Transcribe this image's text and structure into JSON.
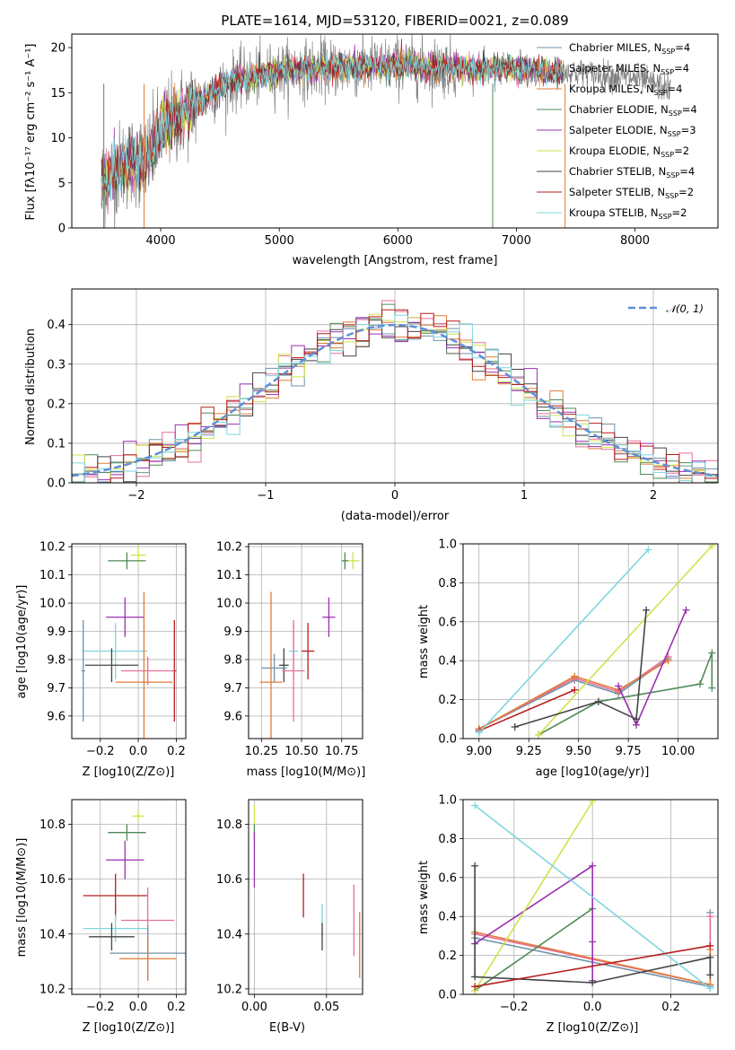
{
  "colors": {
    "Chabrier MILES": "#6f93a5",
    "Salpeter MILES": "#e76f9a",
    "Kroupa MILES": "#e07b39",
    "Chabrier ELODIE": "#4f8a57",
    "Salpeter ELODIE": "#9b2fb0",
    "Kroupa ELODIE": "#cfe34a",
    "Chabrier STELIB": "#444444",
    "Salpeter STELIB": "#b71c1c",
    "Kroupa STELIB": "#7ed6df",
    "Gaussian": "#5f8fd6",
    "Spectrum": "#808080"
  },
  "chart_data": [
    {
      "id": "spectrum",
      "type": "line",
      "title": "PLATE=1614, MJD=53120, FIBERID=0021, z=0.089",
      "xlabel": "wavelength [Angstrom, rest frame]",
      "ylabel": "Flux [fλ10⁻¹⁷ erg cm⁻² s⁻¹ A⁻¹]",
      "xlim": [
        3250,
        8700
      ],
      "ylim": [
        0,
        21.5
      ],
      "xticks": [
        4000,
        5000,
        6000,
        7000,
        8000
      ],
      "yticks": [
        0,
        5,
        10,
        15,
        20
      ],
      "legend_position": "right",
      "legend": [
        "Chabrier MILES, N_SSP=4",
        "Salpeter MILES, N_SSP=4",
        "Kroupa MILES, N_SSP=4",
        "Chabrier ELODIE, N_SSP=4",
        "Salpeter ELODIE, N_SSP=3",
        "Kroupa ELODIE, N_SSP=2",
        "Chabrier STELIB, N_SSP=4",
        "Salpeter STELIB, N_SSP=2",
        "Kroupa STELIB, N_SSP=2"
      ],
      "continuum_anchors": [
        [
          3500,
          5.0
        ],
        [
          3700,
          7.2
        ],
        [
          3900,
          7.8
        ],
        [
          4000,
          11.0
        ],
        [
          4300,
          13.8
        ],
        [
          4600,
          16.2
        ],
        [
          5000,
          17.4
        ],
        [
          5500,
          17.8
        ],
        [
          6000,
          18.0
        ],
        [
          6500,
          17.8
        ],
        [
          7000,
          17.6
        ],
        [
          7500,
          17.2
        ],
        [
          8000,
          16.6
        ],
        [
          8300,
          15.4
        ]
      ],
      "spectrum_range": [
        3500,
        8300
      ],
      "model_range": [
        3500,
        7400
      ],
      "spikes": [
        [
          3520,
          0
        ],
        [
          3860,
          0
        ],
        [
          6800,
          0
        ],
        [
          7410,
          0
        ]
      ]
    },
    {
      "id": "residuals",
      "type": "histogram",
      "xlabel": "(data-model)/error",
      "ylabel": "Normed distribution",
      "xlim": [
        -2.5,
        2.5
      ],
      "ylim": [
        0,
        0.49
      ],
      "xticks": [
        -2,
        -1,
        0,
        1,
        2
      ],
      "yticks": [
        0.0,
        0.1,
        0.2,
        0.3,
        0.4
      ],
      "grid": true,
      "legend_position": "top-right",
      "legend": [
        "𝒩(0, 1)"
      ],
      "bin_width": 0.1,
      "gaussian": {
        "mean": 0,
        "sigma": 1
      }
    },
    {
      "id": "age-vs-Z",
      "type": "errorbar",
      "xlabel": "Z [log10(Z/Z⊙)]",
      "ylabel": "age  [log10(age/yr)]",
      "xlim": [
        -0.35,
        0.25
      ],
      "ylim": [
        9.52,
        10.21
      ],
      "xticks": [
        -0.2,
        0.0,
        0.2
      ],
      "yticks": [
        9.6,
        9.7,
        9.8,
        9.9,
        10.0,
        10.1,
        10.2
      ],
      "points": [
        {
          "model": "Kroupa ELODIE",
          "x": 0.0,
          "xerr": 0.04,
          "y": 10.17,
          "yerr": 0.03
        },
        {
          "model": "Chabrier ELODIE",
          "x": -0.06,
          "xerr": 0.1,
          "y": 10.15,
          "yerr": 0.03
        },
        {
          "model": "Salpeter ELODIE",
          "x": -0.07,
          "xerr": 0.1,
          "y": 9.95,
          "yerr": 0.07
        },
        {
          "model": "Kroupa STELIB",
          "x": -0.12,
          "xerr": 0.17,
          "y": 9.83,
          "yerr": 0.1
        },
        {
          "model": "Chabrier MILES",
          "x": -0.29,
          "xerr": 0.01,
          "y": 9.76,
          "yerr": 0.18
        },
        {
          "model": "Salpeter STELIB",
          "x": 0.19,
          "xerr": 0.01,
          "y": 9.76,
          "yerr": 0.18
        },
        {
          "model": "Chabrier STELIB",
          "x": -0.14,
          "xerr": 0.14,
          "y": 9.78,
          "yerr": 0.06
        },
        {
          "model": "Salpeter MILES",
          "x": 0.05,
          "xerr": 0.14,
          "y": 9.76,
          "yerr": 0.05
        },
        {
          "model": "Kroupa MILES",
          "x": 0.03,
          "xerr": 0.15,
          "y": 9.72,
          "yerr": 0.32
        }
      ]
    },
    {
      "id": "age-vs-mass",
      "type": "errorbar",
      "xlabel": "mass [log10(M/M⊙)]",
      "ylabel": "",
      "xlim": [
        10.17,
        10.88
      ],
      "ylim": [
        9.52,
        10.21
      ],
      "xticks": [
        10.25,
        10.5,
        10.75
      ],
      "yticks": [
        9.6,
        9.7,
        9.8,
        9.9,
        10.0,
        10.1,
        10.2
      ],
      "points": [
        {
          "model": "Kroupa ELODIE",
          "x": 10.82,
          "xerr": 0.04,
          "y": 10.15,
          "yerr": 0.03
        },
        {
          "model": "Chabrier ELODIE",
          "x": 10.77,
          "xerr": 0.02,
          "y": 10.15,
          "yerr": 0.03
        },
        {
          "model": "Salpeter ELODIE",
          "x": 10.67,
          "xerr": 0.04,
          "y": 9.95,
          "yerr": 0.07
        },
        {
          "model": "Salpeter STELIB",
          "x": 10.54,
          "xerr": 0.04,
          "y": 9.83,
          "yerr": 0.1
        },
        {
          "model": "Kroupa STELIB",
          "x": 10.45,
          "xerr": 0.03,
          "y": 9.83,
          "yerr": 0.1
        },
        {
          "model": "Chabrier STELIB",
          "x": 10.39,
          "xerr": 0.03,
          "y": 9.78,
          "yerr": 0.06
        },
        {
          "model": "Chabrier MILES",
          "x": 10.33,
          "xerr": 0.08,
          "y": 9.77,
          "yerr": 0.05
        },
        {
          "model": "Salpeter MILES",
          "x": 10.45,
          "xerr": 0.07,
          "y": 9.76,
          "yerr": 0.18
        },
        {
          "model": "Kroupa MILES",
          "x": 10.31,
          "xerr": 0.07,
          "y": 9.72,
          "yerr": 0.32
        }
      ]
    },
    {
      "id": "mass-weight-vs-age",
      "type": "line",
      "xlabel": "age  [log10(age/yr)]",
      "ylabel": "mass weight",
      "xlim": [
        8.92,
        10.2
      ],
      "ylim": [
        0,
        1.0
      ],
      "xticks": [
        9.0,
        9.25,
        9.5,
        9.75,
        10.0
      ],
      "yticks": [
        0.0,
        0.2,
        0.4,
        0.6,
        0.8,
        1.0
      ],
      "series": [
        {
          "model": "Chabrier MILES",
          "x": [
            9.0,
            9.48,
            9.7,
            9.95
          ],
          "y": [
            0.05,
            0.3,
            0.23,
            0.41
          ]
        },
        {
          "model": "Salpeter MILES",
          "x": [
            9.0,
            9.48,
            9.7,
            9.95
          ],
          "y": [
            0.05,
            0.31,
            0.24,
            0.42
          ]
        },
        {
          "model": "Kroupa MILES",
          "x": [
            9.0,
            9.48,
            9.7,
            9.95
          ],
          "y": [
            0.05,
            0.32,
            0.25,
            0.4
          ]
        },
        {
          "model": "Chabrier ELODIE",
          "x": [
            9.3,
            9.6,
            10.11,
            10.17,
            10.17
          ],
          "y": [
            0.02,
            0.19,
            0.28,
            0.44,
            0.26
          ]
        },
        {
          "model": "Salpeter ELODIE",
          "x": [
            9.7,
            9.79,
            10.04
          ],
          "y": [
            0.27,
            0.07,
            0.66
          ]
        },
        {
          "model": "Kroupa ELODIE",
          "x": [
            9.3,
            10.17
          ],
          "y": [
            0.02,
            0.99
          ]
        },
        {
          "model": "Chabrier STELIB",
          "x": [
            9.18,
            9.6,
            9.79,
            9.84
          ],
          "y": [
            0.06,
            0.19,
            0.1,
            0.66
          ]
        },
        {
          "model": "Salpeter STELIB",
          "x": [
            9.0,
            9.48
          ],
          "y": [
            0.04,
            0.25
          ]
        },
        {
          "model": "Kroupa STELIB",
          "x": [
            9.0,
            9.85
          ],
          "y": [
            0.03,
            0.97
          ]
        }
      ]
    },
    {
      "id": "mass-vs-Z",
      "type": "errorbar",
      "xlabel": "Z [log10(Z/Z⊙)]",
      "ylabel": "mass [log10(M/M⊙)]",
      "xlim": [
        -0.35,
        0.25
      ],
      "ylim": [
        10.18,
        10.89
      ],
      "xticks": [
        -0.2,
        0.0,
        0.2
      ],
      "yticks": [
        10.2,
        10.4,
        10.6,
        10.8
      ],
      "points": [
        {
          "model": "Kroupa ELODIE",
          "x": 0.0,
          "xerr": 0.03,
          "y": 10.83,
          "yerr": 0.02
        },
        {
          "model": "Chabrier ELODIE",
          "x": -0.06,
          "xerr": 0.1,
          "y": 10.77,
          "yerr": 0.03
        },
        {
          "model": "Salpeter ELODIE",
          "x": -0.07,
          "xerr": 0.1,
          "y": 10.67,
          "yerr": 0.07
        },
        {
          "model": "Salpeter STELIB",
          "x": -0.12,
          "xerr": 0.17,
          "y": 10.54,
          "yerr": 0.08
        },
        {
          "model": "Salpeter MILES",
          "x": 0.05,
          "xerr": 0.14,
          "y": 10.45,
          "yerr": 0.12
        },
        {
          "model": "Kroupa STELIB",
          "x": -0.12,
          "xerr": 0.17,
          "y": 10.42,
          "yerr": 0.05
        },
        {
          "model": "Chabrier STELIB",
          "x": -0.14,
          "xerr": 0.12,
          "y": 10.39,
          "yerr": 0.05
        },
        {
          "model": "Chabrier MILES",
          "x": 0.05,
          "xerr": 0.2,
          "y": 10.33,
          "yerr": 0.1
        },
        {
          "model": "Kroupa MILES",
          "x": 0.05,
          "xerr": 0.15,
          "y": 10.31,
          "yerr": 0.08
        }
      ]
    },
    {
      "id": "mass-vs-EBV",
      "type": "errorbar",
      "xlabel": "E(B-V)",
      "ylabel": "",
      "xlim": [
        -0.004,
        0.075
      ],
      "ylim": [
        10.18,
        10.89
      ],
      "xticks": [
        0.0,
        0.05
      ],
      "yticks": [
        10.2,
        10.4,
        10.6,
        10.8
      ],
      "points": [
        {
          "model": "Kroupa ELODIE",
          "x": 0.0,
          "xerr": 0.0,
          "y": 10.83,
          "yerr": 0.04
        },
        {
          "model": "Chabrier ELODIE",
          "x": 0.0,
          "xerr": 0.0,
          "y": 10.77,
          "yerr": 0.03
        },
        {
          "model": "Salpeter ELODIE",
          "x": 0.0,
          "xerr": 0.0,
          "y": 10.67,
          "yerr": 0.1
        },
        {
          "model": "Salpeter STELIB",
          "x": 0.034,
          "xerr": 0.0,
          "y": 10.54,
          "yerr": 0.08
        },
        {
          "model": "Kroupa STELIB",
          "x": 0.047,
          "xerr": 0.0,
          "y": 10.45,
          "yerr": 0.06
        },
        {
          "model": "Chabrier STELIB",
          "x": 0.047,
          "xerr": 0.0,
          "y": 10.39,
          "yerr": 0.05
        },
        {
          "model": "Salpeter MILES",
          "x": 0.069,
          "xerr": 0.0,
          "y": 10.45,
          "yerr": 0.13
        },
        {
          "model": "Kroupa MILES",
          "x": 0.073,
          "xerr": 0.0,
          "y": 10.36,
          "yerr": 0.12
        }
      ]
    },
    {
      "id": "mass-weight-vs-Z",
      "type": "line",
      "xlabel": "Z [log10(Z/Z⊙)]",
      "ylabel": "mass weight",
      "xlim": [
        -0.33,
        0.32
      ],
      "ylim": [
        0,
        1.0
      ],
      "xticks": [
        -0.2,
        0.0,
        0.2
      ],
      "yticks": [
        0.0,
        0.2,
        0.4,
        0.6,
        0.8,
        1.0
      ],
      "series": [
        {
          "model": "Chabrier MILES",
          "x": [
            -0.3,
            0.3,
            0.3
          ],
          "y": [
            0.29,
            0.04,
            0.42
          ]
        },
        {
          "model": "Salpeter MILES",
          "x": [
            -0.3,
            0.3,
            0.3
          ],
          "y": [
            0.31,
            0.05,
            0.4
          ]
        },
        {
          "model": "Kroupa MILES",
          "x": [
            -0.3,
            0.3,
            0.3
          ],
          "y": [
            0.32,
            0.05,
            0.23
          ]
        },
        {
          "model": "Chabrier ELODIE",
          "x": [
            -0.3,
            0.0
          ],
          "y": [
            0.02,
            0.44
          ]
        },
        {
          "model": "Salpeter ELODIE",
          "x": [
            -0.3,
            0.0,
            0.0,
            0.0
          ],
          "y": [
            0.26,
            0.66,
            0.27,
            0.07
          ]
        },
        {
          "model": "Kroupa ELODIE",
          "x": [
            -0.3,
            0.0
          ],
          "y": [
            0.02,
            0.99
          ]
        },
        {
          "model": "Chabrier STELIB",
          "x": [
            -0.3,
            -0.3,
            0.0,
            0.3,
            0.3
          ],
          "y": [
            0.66,
            0.09,
            0.06,
            0.19,
            0.1
          ]
        },
        {
          "model": "Kroupa STELIB",
          "x": [
            -0.3,
            0.3
          ],
          "y": [
            0.97,
            0.03
          ]
        },
        {
          "model": "Salpeter STELIB",
          "x": [
            -0.3,
            0.3
          ],
          "y": [
            0.04,
            0.25
          ]
        }
      ]
    }
  ]
}
